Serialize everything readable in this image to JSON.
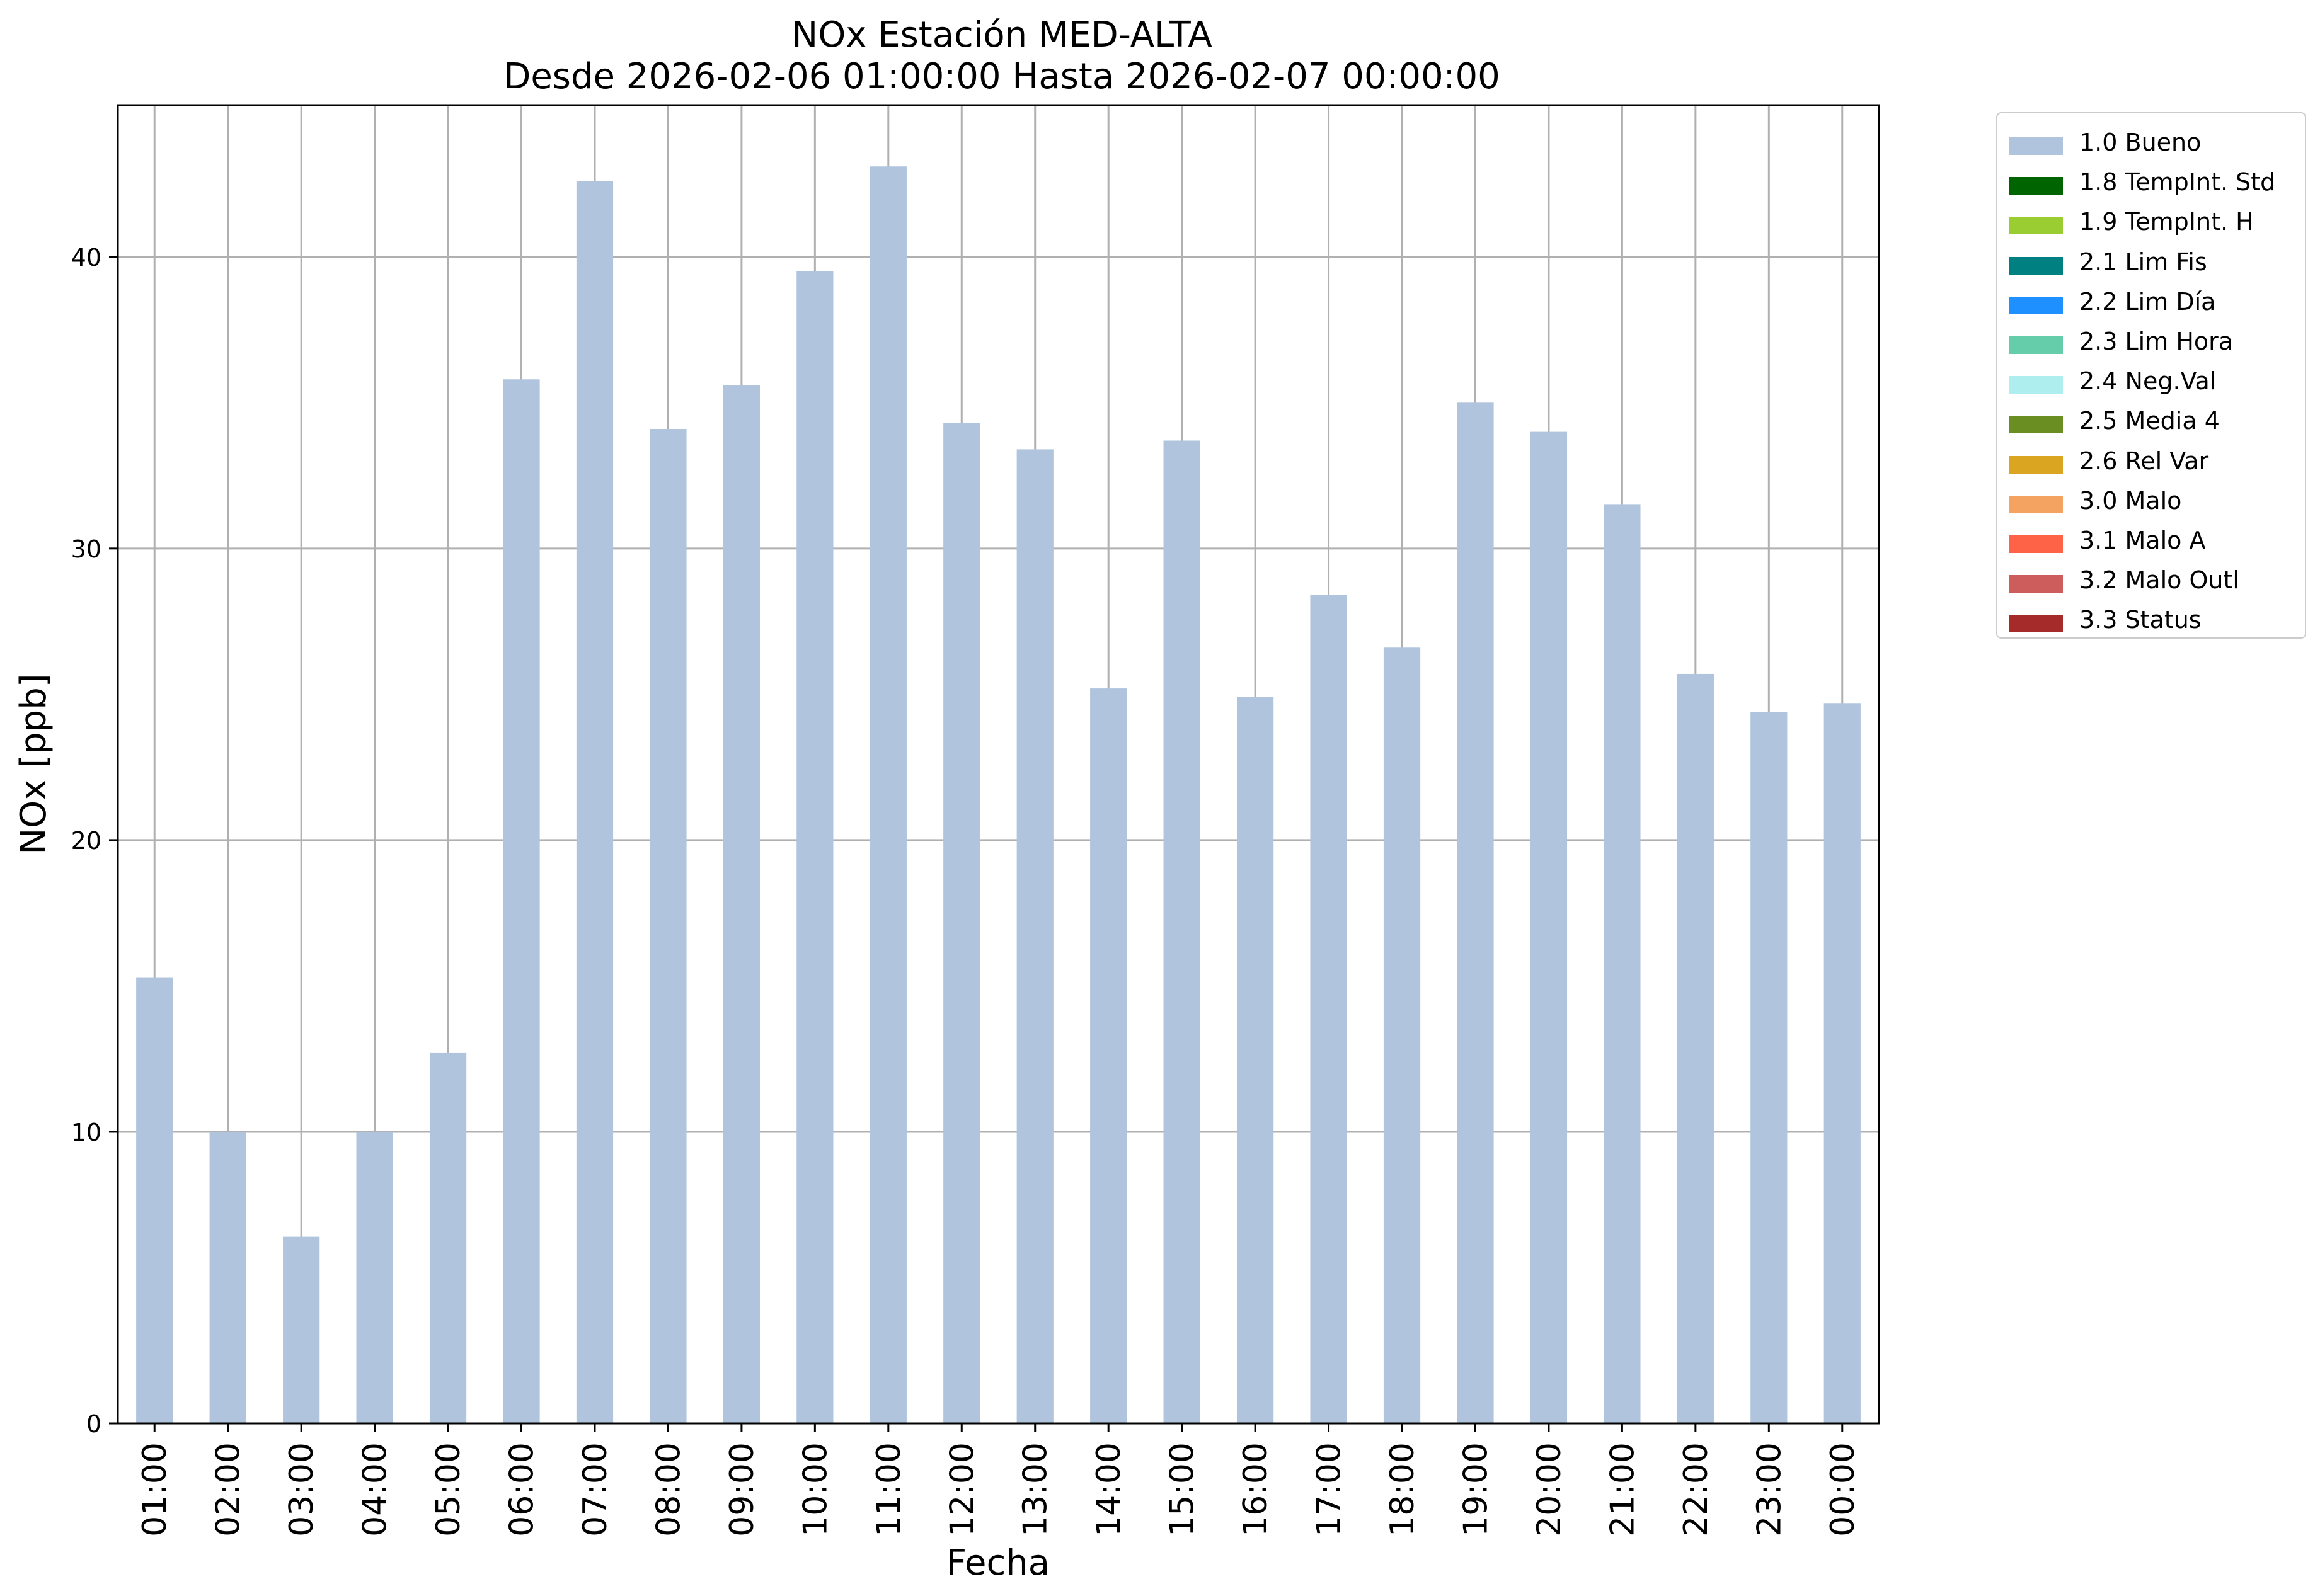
{
  "title": "NOx Estación MED-ALTA",
  "subtitle": "Desde 2026-02-06 01:00:00 Hasta 2026-02-07 00:00:00",
  "colors": {
    "bar": "#b0c4de",
    "grid": "#b0b0b0",
    "axis": "#000000"
  },
  "legend": [
    {
      "label": "1.0 Bueno",
      "color": "#b0c4de"
    },
    {
      "label": "1.8 TempInt. Std",
      "color": "#006400"
    },
    {
      "label": "1.9 TempInt. H",
      "color": "#9acd32"
    },
    {
      "label": "2.1 Lim Fis",
      "color": "#008080"
    },
    {
      "label": "2.2 Lim Día",
      "color": "#1e90ff"
    },
    {
      "label": "2.3 Lim Hora",
      "color": "#66cdaa"
    },
    {
      "label": "2.4 Neg.Val",
      "color": "#afeeee"
    },
    {
      "label": "2.5 Media 4",
      "color": "#6b8e23"
    },
    {
      "label": "2.6 Rel Var",
      "color": "#daa520"
    },
    {
      "label": "3.0 Malo",
      "color": "#f4a460"
    },
    {
      "label": "3.1 Malo A",
      "color": "#ff6347"
    },
    {
      "label": "3.2 Malo Outl",
      "color": "#cd5c5c"
    },
    {
      "label": "3.3 Status",
      "color": "#a52a2a"
    }
  ],
  "chart_data": {
    "type": "bar",
    "title": "NOx Estación MED-ALTA",
    "subtitle": "Desde 2026-02-06 01:00:00 Hasta 2026-02-07 00:00:00",
    "xlabel": "Fecha",
    "ylabel": "NOx [ppb]",
    "ylim": [
      0,
      45.2
    ],
    "yticks": [
      0,
      10,
      20,
      30,
      40
    ],
    "grid": true,
    "legend_position": "outside-top-right",
    "categories": [
      "01:00",
      "02:00",
      "03:00",
      "04:00",
      "05:00",
      "06:00",
      "07:00",
      "08:00",
      "09:00",
      "10:00",
      "11:00",
      "12:00",
      "13:00",
      "14:00",
      "15:00",
      "16:00",
      "17:00",
      "18:00",
      "19:00",
      "20:00",
      "21:00",
      "22:00",
      "23:00",
      "00:00"
    ],
    "series": [
      {
        "name": "1.0 Bueno",
        "values": [
          15.3,
          10.0,
          6.4,
          10.0,
          12.7,
          35.8,
          42.6,
          34.1,
          35.6,
          39.5,
          43.1,
          34.3,
          33.4,
          25.2,
          33.7,
          24.9,
          28.4,
          26.6,
          35.0,
          34.0,
          31.5,
          25.7,
          24.4,
          24.7
        ]
      }
    ]
  }
}
